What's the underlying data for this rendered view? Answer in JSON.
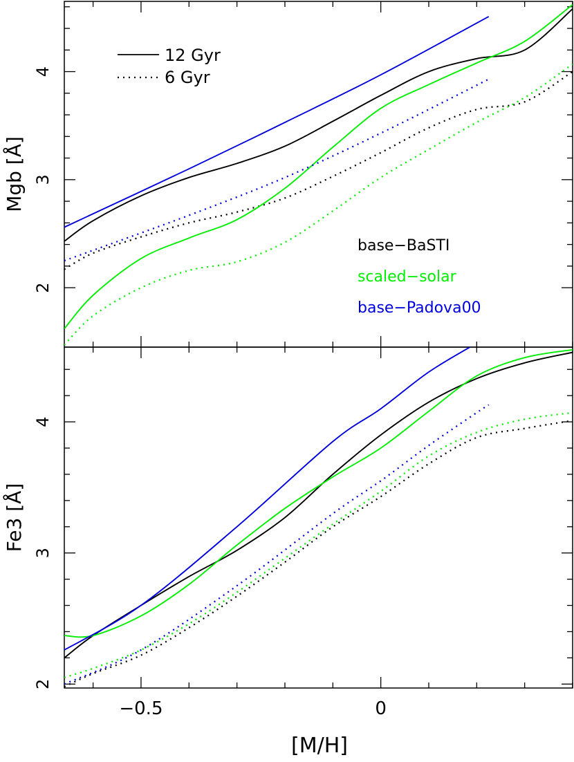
{
  "xlabel": "[M/H]",
  "legend_age": {
    "entries": [
      {
        "label": "12 Gyr",
        "style": "solid"
      },
      {
        "label": "6 Gyr",
        "style": "dotted"
      }
    ]
  },
  "legend_model": {
    "entries": [
      {
        "label": "base−BaSTI",
        "color": "#000000"
      },
      {
        "label": "scaled−solar",
        "color": "#00ee00"
      },
      {
        "label": "base−Padova00",
        "color": "#0000dd"
      }
    ]
  },
  "x_ticks": [
    {
      "value": -0.5,
      "label": "−0.5"
    },
    {
      "value": 0,
      "label": "0"
    }
  ],
  "chart_data": [
    {
      "type": "line",
      "ylabel": "Mgb [Å]",
      "xlim": [
        -0.66,
        0.4
      ],
      "ylim": [
        1.45,
        4.65
      ],
      "y_ticks": [
        {
          "value": 2,
          "label": "2"
        },
        {
          "value": 3,
          "label": "3"
        },
        {
          "value": 4,
          "label": "4"
        }
      ],
      "series": [
        {
          "name": "base−BaSTI 12 Gyr",
          "color": "#000000",
          "style": "solid",
          "x": [
            -0.66,
            -0.6,
            -0.5,
            -0.4,
            -0.3,
            -0.2,
            -0.1,
            0.0,
            0.1,
            0.2,
            0.3,
            0.4
          ],
          "y": [
            2.43,
            2.62,
            2.85,
            3.02,
            3.15,
            3.31,
            3.54,
            3.78,
            4.0,
            4.12,
            4.2,
            4.58
          ]
        },
        {
          "name": "base−BaSTI 6 Gyr",
          "color": "#000000",
          "style": "dotted",
          "x": [
            -0.66,
            -0.6,
            -0.5,
            -0.4,
            -0.3,
            -0.2,
            -0.1,
            0.0,
            0.1,
            0.2,
            0.3,
            0.4
          ],
          "y": [
            2.17,
            2.32,
            2.47,
            2.6,
            2.7,
            2.83,
            3.03,
            3.25,
            3.48,
            3.65,
            3.72,
            4.0
          ]
        },
        {
          "name": "scaled−solar 12 Gyr",
          "color": "#00ee00",
          "style": "solid",
          "x": [
            -0.66,
            -0.6,
            -0.5,
            -0.4,
            -0.3,
            -0.2,
            -0.1,
            0.0,
            0.1,
            0.2,
            0.3,
            0.4
          ],
          "y": [
            1.62,
            1.93,
            2.27,
            2.46,
            2.63,
            2.92,
            3.3,
            3.66,
            3.88,
            4.08,
            4.28,
            4.62
          ]
        },
        {
          "name": "scaled−solar 6 Gyr",
          "color": "#00ee00",
          "style": "dotted",
          "x": [
            -0.66,
            -0.6,
            -0.5,
            -0.4,
            -0.3,
            -0.2,
            -0.1,
            0.0,
            0.1,
            0.2,
            0.3,
            0.4
          ],
          "y": [
            1.47,
            1.74,
            2.0,
            2.16,
            2.24,
            2.42,
            2.71,
            3.02,
            3.28,
            3.53,
            3.76,
            4.07
          ]
        },
        {
          "name": "base−Padova00 12 Gyr",
          "color": "#0000dd",
          "style": "solid",
          "x": [
            -0.66,
            -0.4,
            -0.2,
            0.0,
            0.225
          ],
          "y": [
            2.56,
            3.1,
            3.53,
            3.97,
            4.51
          ]
        },
        {
          "name": "base−Padova00 6 Gyr",
          "color": "#0000dd",
          "style": "dotted",
          "x": [
            -0.66,
            -0.4,
            -0.2,
            0.0,
            0.225
          ],
          "y": [
            2.25,
            2.67,
            3.02,
            3.43,
            3.93
          ]
        }
      ]
    },
    {
      "type": "line",
      "ylabel": "Fe3 [Å]",
      "xlim": [
        -0.66,
        0.4
      ],
      "ylim": [
        1.97,
        4.57
      ],
      "y_ticks": [
        {
          "value": 2,
          "label": "2"
        },
        {
          "value": 3,
          "label": "3"
        },
        {
          "value": 4,
          "label": "4"
        }
      ],
      "series": [
        {
          "name": "base−BaSTI 12 Gyr",
          "color": "#000000",
          "style": "solid",
          "x": [
            -0.66,
            -0.6,
            -0.5,
            -0.4,
            -0.3,
            -0.2,
            -0.1,
            0.0,
            0.1,
            0.2,
            0.3,
            0.4
          ],
          "y": [
            2.2,
            2.37,
            2.6,
            2.82,
            3.02,
            3.27,
            3.6,
            3.9,
            4.15,
            4.33,
            4.45,
            4.53
          ]
        },
        {
          "name": "base−BaSTI 6 Gyr",
          "color": "#000000",
          "style": "dotted",
          "x": [
            -0.66,
            -0.6,
            -0.5,
            -0.4,
            -0.3,
            -0.2,
            -0.1,
            0.0,
            0.1,
            0.2,
            0.3,
            0.4
          ],
          "y": [
            1.98,
            2.08,
            2.22,
            2.43,
            2.67,
            2.93,
            3.2,
            3.43,
            3.68,
            3.88,
            3.95,
            4.01
          ]
        },
        {
          "name": "scaled−solar 12 Gyr",
          "color": "#00ee00",
          "style": "solid",
          "x": [
            -0.66,
            -0.6,
            -0.5,
            -0.4,
            -0.3,
            -0.2,
            -0.1,
            0.0,
            0.1,
            0.2,
            0.3,
            0.4
          ],
          "y": [
            2.37,
            2.37,
            2.52,
            2.76,
            3.06,
            3.34,
            3.58,
            3.8,
            4.08,
            4.35,
            4.49,
            4.55
          ]
        },
        {
          "name": "scaled−solar 6 Gyr",
          "color": "#00ee00",
          "style": "dotted",
          "x": [
            -0.66,
            -0.6,
            -0.5,
            -0.4,
            -0.3,
            -0.2,
            -0.1,
            0.0,
            0.1,
            0.2,
            0.3,
            0.4
          ],
          "y": [
            2.05,
            2.12,
            2.26,
            2.46,
            2.7,
            2.96,
            3.22,
            3.47,
            3.74,
            3.92,
            4.02,
            4.07
          ]
        },
        {
          "name": "base−Padova00 12 Gyr",
          "color": "#0000dd",
          "style": "solid",
          "x": [
            -0.66,
            -0.5,
            -0.3,
            -0.1,
            0.0,
            0.1,
            0.2
          ],
          "y": [
            2.26,
            2.6,
            3.2,
            3.85,
            4.1,
            4.38,
            4.6
          ]
        },
        {
          "name": "base−Padova00 6 Gyr",
          "color": "#0000dd",
          "style": "dotted",
          "x": [
            -0.66,
            -0.5,
            -0.3,
            -0.1,
            0.0,
            0.1,
            0.2,
            0.225
          ],
          "y": [
            2.0,
            2.26,
            2.75,
            3.3,
            3.55,
            3.82,
            4.07,
            4.13
          ]
        }
      ]
    }
  ]
}
